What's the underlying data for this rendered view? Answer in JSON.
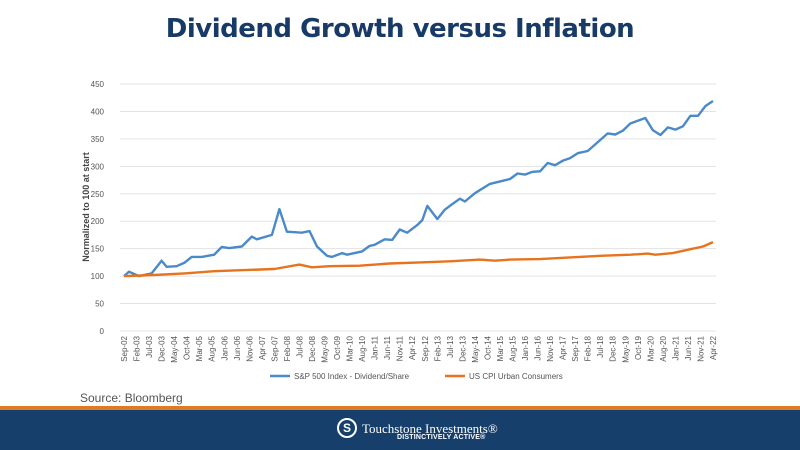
{
  "title": "Dividend Growth versus Inflation",
  "source": "Source: Bloomberg",
  "footer": {
    "brand": "Touchstone Investments®",
    "tagline": "DISTINCTIVELY ACTIVE®",
    "logo_icon": "touchstone-logo-icon"
  },
  "colors": {
    "title": "#173a66",
    "footer_band": "#163f6c",
    "footer_rule": "#e07b22",
    "sp500": "#4a8ac9",
    "cpi": "#e8731e"
  },
  "chart_data": {
    "type": "line",
    "title": "Dividend Growth versus Inflation",
    "ylabel": "Normalized to 100 at start",
    "xlabel": "",
    "ylim": [
      0,
      450
    ],
    "yticks": [
      0,
      50,
      100,
      150,
      200,
      250,
      300,
      350,
      400,
      450
    ],
    "grid": "horizontal",
    "legend": "bottom",
    "xticks": [
      "Sep-02",
      "Feb-03",
      "Jul-03",
      "Dec-03",
      "May-04",
      "Oct-04",
      "Mar-05",
      "Aug-05",
      "Jan-06",
      "Jun-06",
      "Nov-06",
      "Apr-07",
      "Sep-07",
      "Feb-08",
      "Jul-08",
      "Dec-08",
      "May-09",
      "Oct-09",
      "Mar-10",
      "Aug-10",
      "Jan-11",
      "Jun-11",
      "Nov-11",
      "Apr-12",
      "Sep-12",
      "Feb-13",
      "Jul-13",
      "Dec-13",
      "May-14",
      "Oct-14",
      "Mar-15",
      "Aug-15",
      "Jan-16",
      "Jun-16",
      "Nov-16",
      "Apr-17",
      "Sep-17",
      "Feb-18",
      "Jul-18",
      "Dec-18",
      "May-19",
      "Oct-19",
      "Mar-20",
      "Aug-20",
      "Jan-21",
      "Jun-21",
      "Nov-21",
      "Apr-22"
    ],
    "series": [
      {
        "name": "S&P 500 Index - Dividend/Share",
        "color": "#4a8ac9",
        "x": [
          "Sep-02",
          "Nov-02",
          "Mar-03",
          "Aug-03",
          "Dec-03",
          "Feb-04",
          "Jun-04",
          "Sep-04",
          "Dec-04",
          "Apr-05",
          "Sep-05",
          "Dec-05",
          "Mar-06",
          "Aug-06",
          "Dec-06",
          "Feb-07",
          "Aug-07",
          "Nov-07",
          "Feb-08",
          "Aug-08",
          "Nov-08",
          "Feb-09",
          "Jun-09",
          "Aug-09",
          "Dec-09",
          "Feb-10",
          "Aug-10",
          "Nov-10",
          "Jan-11",
          "May-11",
          "Aug-11",
          "Nov-11",
          "Feb-12",
          "Jun-12",
          "Aug-12",
          "Oct-12",
          "Feb-13",
          "May-13",
          "Jul-13",
          "Nov-13",
          "Jan-14",
          "May-14",
          "Nov-14",
          "Jul-15",
          "Oct-15",
          "Jan-16",
          "Apr-16",
          "Jul-16",
          "Oct-16",
          "Jan-17",
          "Apr-17",
          "Jul-17",
          "Oct-17",
          "Feb-18",
          "Apr-18",
          "Oct-18",
          "Jan-19",
          "Apr-19",
          "Jul-19",
          "Jan-20",
          "Apr-20",
          "Jul-20",
          "Oct-20",
          "Jan-21",
          "Apr-21",
          "Jul-21",
          "Oct-21",
          "Jan-22",
          "Apr-22"
        ],
        "values": [
          100,
          108,
          100,
          105,
          128,
          117,
          118,
          124,
          135,
          135,
          139,
          153,
          151,
          154,
          172,
          167,
          175,
          222,
          181,
          179,
          182,
          154,
          137,
          135,
          142,
          139,
          145,
          155,
          157,
          167,
          166,
          185,
          179,
          193,
          202,
          228,
          204,
          221,
          228,
          241,
          236,
          251,
          268,
          277,
          287,
          285,
          290,
          291,
          306,
          302,
          310,
          315,
          324,
          328,
          336,
          360,
          358,
          365,
          378,
          388,
          366,
          357,
          371,
          367,
          373,
          392,
          392,
          410,
          419
        ]
      },
      {
        "name": "US CPI Urban Consumers",
        "color": "#e8731e",
        "x": [
          "Sep-02",
          "Sep-03",
          "Sep-04",
          "Sep-05",
          "Sep-06",
          "Sep-07",
          "Jul-08",
          "Dec-08",
          "Jul-09",
          "Jul-10",
          "Jul-11",
          "Jul-12",
          "Jul-13",
          "Jul-14",
          "Jan-15",
          "Jul-15",
          "Jul-16",
          "Jul-17",
          "Jul-18",
          "Jul-19",
          "Feb-20",
          "May-20",
          "Dec-20",
          "Jul-21",
          "Dec-21",
          "Apr-22"
        ],
        "values": [
          100,
          102,
          105,
          109,
          111,
          113,
          121,
          116,
          118,
          119,
          123,
          125,
          127,
          130,
          128,
          130,
          131,
          134,
          137,
          139,
          141,
          139,
          142,
          149,
          154,
          162
        ]
      }
    ]
  }
}
